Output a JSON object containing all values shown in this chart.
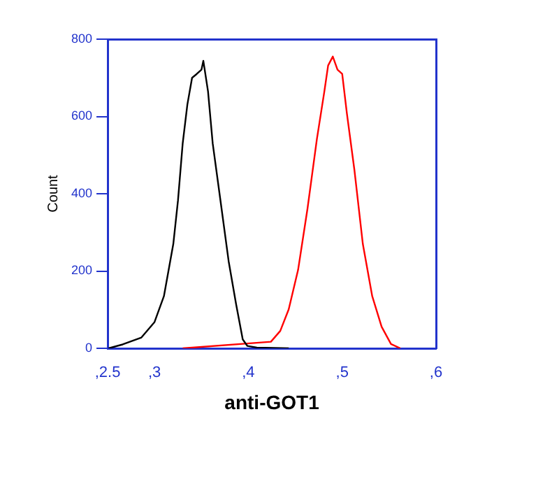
{
  "chart_data": {
    "type": "line",
    "xlabel": "anti-GOT1",
    "ylabel": "Count",
    "xlim": [
      2.5,
      6
    ],
    "xticks": [
      {
        "value": 2.5,
        "label": ",2.5"
      },
      {
        "value": 3,
        "label": ",3"
      },
      {
        "value": 4,
        "label": ",4"
      },
      {
        "value": 5,
        "label": ",5"
      },
      {
        "value": 6,
        "label": ",6"
      }
    ],
    "ylim": [
      0,
      800
    ],
    "yticks": [
      0,
      200,
      400,
      600,
      800
    ],
    "grid": false,
    "legend": false,
    "marker": "none",
    "line_style": "solid",
    "series": [
      {
        "color": "#000000",
        "x": [
          2.51,
          2.66,
          2.86,
          3.0,
          3.1,
          3.2,
          3.25,
          3.3,
          3.35,
          3.4,
          3.45,
          3.5,
          3.52,
          3.57,
          3.62,
          3.69,
          3.79,
          3.87,
          3.94,
          3.99,
          4.09,
          4.43
        ],
        "values": [
          0,
          10,
          28,
          68,
          135,
          270,
          383,
          530,
          631,
          700,
          710,
          721,
          744,
          665,
          530,
          405,
          225,
          113,
          23,
          6,
          2,
          0
        ]
      },
      {
        "color": "#ff0000",
        "x": [
          3.3,
          4.24,
          4.34,
          4.43,
          4.53,
          4.63,
          4.73,
          4.81,
          4.85,
          4.9,
          4.95,
          5.0,
          5.05,
          5.13,
          5.22,
          5.32,
          5.42,
          5.52,
          5.62
        ],
        "values": [
          0,
          17,
          45,
          101,
          203,
          361,
          541,
          665,
          732,
          755,
          721,
          710,
          608,
          462,
          270,
          135,
          56,
          11,
          0
        ]
      }
    ]
  }
}
